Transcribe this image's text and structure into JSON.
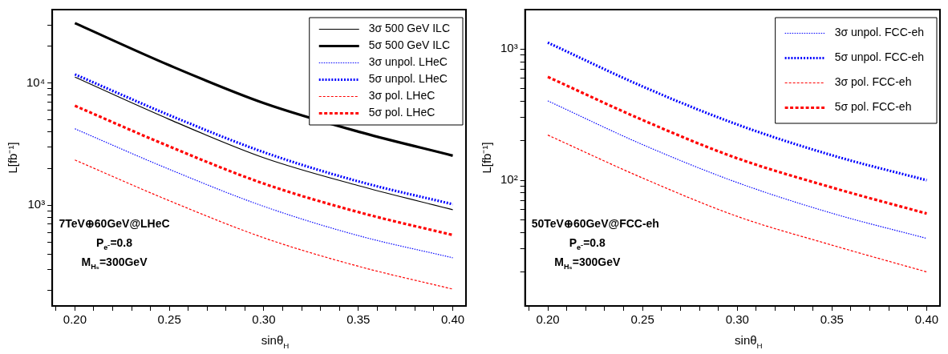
{
  "chart_data": [
    {
      "type": "line",
      "xlabel": "sinθ$_{H}$",
      "ylabel": "L[fb⁻¹]",
      "log": "y",
      "grid": false,
      "legend": "top right",
      "marker": "none",
      "xlim": [
        0.188,
        0.407
      ],
      "ylim": [
        150,
        40000
      ],
      "xticks": [
        {
          "value": 0.19,
          "label": null
        },
        {
          "value": 0.2,
          "label": "0.20"
        },
        {
          "value": 0.21,
          "label": null
        },
        {
          "value": 0.22,
          "label": null
        },
        {
          "value": 0.23,
          "label": null
        },
        {
          "value": 0.24,
          "label": null
        },
        {
          "value": 0.25,
          "label": "0.25"
        },
        {
          "value": 0.26,
          "label": null
        },
        {
          "value": 0.27,
          "label": null
        },
        {
          "value": 0.28,
          "label": null
        },
        {
          "value": 0.29,
          "label": null
        },
        {
          "value": 0.3,
          "label": "0.30"
        },
        {
          "value": 0.31,
          "label": null
        },
        {
          "value": 0.32,
          "label": null
        },
        {
          "value": 0.33,
          "label": null
        },
        {
          "value": 0.34,
          "label": null
        },
        {
          "value": 0.35,
          "label": "0.35"
        },
        {
          "value": 0.36,
          "label": null
        },
        {
          "value": 0.37,
          "label": null
        },
        {
          "value": 0.38,
          "label": null
        },
        {
          "value": 0.39,
          "label": null
        },
        {
          "value": 0.4,
          "label": "0.40"
        }
      ],
      "yticks": [
        {
          "value": 200,
          "label": null
        },
        {
          "value": 300,
          "label": null
        },
        {
          "value": 400,
          "label": null
        },
        {
          "value": 500,
          "label": null
        },
        {
          "value": 600,
          "label": null
        },
        {
          "value": 700,
          "label": null
        },
        {
          "value": 800,
          "label": null
        },
        {
          "value": 900,
          "label": null
        },
        {
          "value": 1000,
          "label": "10³"
        },
        {
          "value": 2000,
          "label": null
        },
        {
          "value": 3000,
          "label": null
        },
        {
          "value": 4000,
          "label": null
        },
        {
          "value": 5000,
          "label": null
        },
        {
          "value": 6000,
          "label": null
        },
        {
          "value": 7000,
          "label": null
        },
        {
          "value": 8000,
          "label": null
        },
        {
          "value": 9000,
          "label": null
        },
        {
          "value": 10000,
          "label": "10⁴"
        },
        {
          "value": 20000,
          "label": null
        },
        {
          "value": 30000,
          "label": null
        }
      ],
      "x": [
        0.2,
        0.25,
        0.3,
        0.35,
        0.4
      ],
      "series": [
        {
          "name": "3σ 500 GeV ILC",
          "color": "#000000",
          "line_style": "solid",
          "values": [
            11200,
            5050,
            2450,
            1450,
            920
          ]
        },
        {
          "name": "5σ 500 GeV ILC",
          "color": "#000000",
          "line_style": "solid",
          "values": [
            31000,
            14000,
            6860,
            4010,
            2550
          ]
        },
        {
          "name": "3σ unpol. LHeC",
          "color": "#0000ff",
          "line_style": "dotted",
          "values": [
            4230,
            1970,
            980,
            565,
            372
          ]
        },
        {
          "name": "5σ unpol. LHeC",
          "color": "#0000ff",
          "line_style": "dotted",
          "values": [
            11800,
            5470,
            2720,
            1570,
            1020
          ]
        },
        {
          "name": "3σ pol. LHeC",
          "color": "#ff0000",
          "line_style": "dashed",
          "values": [
            2350,
            1090,
            542,
            317,
            206
          ]
        },
        {
          "name": "5σ pol. LHeC",
          "color": "#ff0000",
          "line_style": "dashed",
          "values": [
            6530,
            3030,
            1505,
            880,
            571
          ]
        }
      ],
      "annotations": [
        "7TeV⊕60GeV@LHeC",
        "P$_{e⁻}$=0.8",
        "M$_{H₅}$=300GeV"
      ]
    },
    {
      "type": "line",
      "xlabel": "sinθ$_{H}$",
      "ylabel": "L[fb⁻¹]",
      "log": "y",
      "grid": false,
      "legend": "top right",
      "marker": "none",
      "xlim": [
        0.188,
        0.407
      ],
      "ylim": [
        11,
        2000
      ],
      "xticks": [
        {
          "value": 0.19,
          "label": null
        },
        {
          "value": 0.2,
          "label": "0.20"
        },
        {
          "value": 0.21,
          "label": null
        },
        {
          "value": 0.22,
          "label": null
        },
        {
          "value": 0.23,
          "label": null
        },
        {
          "value": 0.24,
          "label": null
        },
        {
          "value": 0.25,
          "label": "0.25"
        },
        {
          "value": 0.26,
          "label": null
        },
        {
          "value": 0.27,
          "label": null
        },
        {
          "value": 0.28,
          "label": null
        },
        {
          "value": 0.29,
          "label": null
        },
        {
          "value": 0.3,
          "label": "0.30"
        },
        {
          "value": 0.31,
          "label": null
        },
        {
          "value": 0.32,
          "label": null
        },
        {
          "value": 0.33,
          "label": null
        },
        {
          "value": 0.34,
          "label": null
        },
        {
          "value": 0.35,
          "label": "0.35"
        },
        {
          "value": 0.36,
          "label": null
        },
        {
          "value": 0.37,
          "label": null
        },
        {
          "value": 0.38,
          "label": null
        },
        {
          "value": 0.39,
          "label": null
        },
        {
          "value": 0.4,
          "label": "0.40"
        }
      ],
      "yticks": [
        {
          "value": 20,
          "label": null
        },
        {
          "value": 30,
          "label": null
        },
        {
          "value": 40,
          "label": null
        },
        {
          "value": 50,
          "label": null
        },
        {
          "value": 60,
          "label": null
        },
        {
          "value": 70,
          "label": null
        },
        {
          "value": 80,
          "label": null
        },
        {
          "value": 90,
          "label": null
        },
        {
          "value": 100,
          "label": "10²"
        },
        {
          "value": 200,
          "label": null
        },
        {
          "value": 300,
          "label": null
        },
        {
          "value": 400,
          "label": null
        },
        {
          "value": 500,
          "label": null
        },
        {
          "value": 600,
          "label": null
        },
        {
          "value": 700,
          "label": null
        },
        {
          "value": 800,
          "label": null
        },
        {
          "value": 900,
          "label": null
        },
        {
          "value": 1000,
          "label": "10³"
        }
      ],
      "x": [
        0.2,
        0.25,
        0.3,
        0.35,
        0.4
      ],
      "series": [
        {
          "name": "3σ unpol. FCC-eh",
          "color": "#0000ff",
          "line_style": "dotted",
          "values": [
            403,
            187,
            96,
            56,
            36
          ]
        },
        {
          "name": "5σ unpol. FCC-eh",
          "color": "#0000ff",
          "line_style": "dotted",
          "values": [
            1120,
            519,
            266,
            155,
            100
          ]
        },
        {
          "name": "3σ pol. FCC-eh",
          "color": "#ff0000",
          "line_style": "dashed",
          "values": [
            221,
            104,
            53,
            32,
            20
          ]
        },
        {
          "name": "5σ pol. FCC-eh",
          "color": "#ff0000",
          "line_style": "dashed",
          "values": [
            614,
            288,
            147,
            88,
            55.7
          ]
        }
      ],
      "annotations": [
        "50TeV⊕60GeV@FCC-eh",
        "P$_{e⁻}$=0.8",
        "M$_{H₅}$=300GeV"
      ]
    }
  ]
}
